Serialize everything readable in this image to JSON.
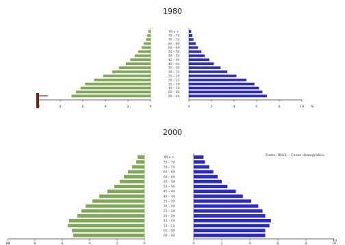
{
  "colors": {
    "male": "#7fa857",
    "female": "#2a2ad0",
    "axis": "#333333",
    "accent_bar": "#7a1e12"
  },
  "chart_data": [
    {
      "type": "bar",
      "title": "1980",
      "xlabel": "",
      "ylabel": "",
      "categories": [
        "00 – 04",
        "05 – 09",
        "10 – 14",
        "15 – 19",
        "20 – 24",
        "25 – 29",
        "30 – 34",
        "35 – 39",
        "40 – 44",
        "45 – 49",
        "50 – 54",
        "55 – 59",
        "60 – 64",
        "65 – 69",
        "70 – 74",
        "75 – 79",
        "80 e +"
      ],
      "series": [
        {
          "side": "left",
          "values": [
            7.0,
            6.6,
            6.2,
            5.8,
            5.0,
            4.2,
            3.4,
            2.8,
            2.2,
            1.8,
            1.4,
            1.1,
            0.8,
            0.6,
            0.4,
            0.3,
            0.2
          ]
        },
        {
          "side": "right",
          "values": [
            6.9,
            6.5,
            6.2,
            5.8,
            5.1,
            4.2,
            3.4,
            2.8,
            2.2,
            1.8,
            1.4,
            1.1,
            0.8,
            0.6,
            0.4,
            0.3,
            0.2
          ]
        }
      ],
      "xlim": [
        0,
        10
      ],
      "x_ticks": [
        "10",
        "8",
        "6",
        "4",
        "2",
        "0"
      ],
      "x_ticks_right": [
        "0",
        "2",
        "4",
        "6",
        "8",
        "10"
      ],
      "unit": "%",
      "axis_edge_labels": [
        "",
        ""
      ],
      "source": ""
    },
    {
      "type": "bar",
      "title": "2000",
      "xlabel": "",
      "ylabel": "",
      "categories": [
        "00 – 04",
        "05 – 09",
        "10 – 14",
        "15 – 19",
        "20 – 24",
        "25 – 29",
        "30 – 34",
        "35 – 39",
        "40 – 44",
        "45 – 49",
        "50 – 54",
        "55 – 59",
        "60 – 64",
        "65 – 69",
        "70 – 74",
        "75 – 79",
        "80 e +"
      ],
      "series": [
        {
          "side": "left",
          "values": [
            5.2,
            5.3,
            5.6,
            5.5,
            4.9,
            4.6,
            4.3,
            3.8,
            3.3,
            2.7,
            2.2,
            1.8,
            1.5,
            1.2,
            0.9,
            0.6,
            0.5
          ]
        },
        {
          "side": "right",
          "values": [
            5.1,
            5.1,
            5.4,
            5.5,
            5.1,
            4.9,
            4.6,
            4.1,
            3.5,
            3.0,
            2.4,
            2.0,
            1.7,
            1.4,
            1.1,
            0.8,
            0.7
          ]
        }
      ],
      "xlim": [
        0,
        10
      ],
      "x_ticks": [
        "10",
        "8",
        "6",
        "4",
        "2",
        "0"
      ],
      "x_ticks_right": [
        "0",
        "2",
        "4",
        "6",
        "8",
        "10"
      ],
      "unit": "",
      "axis_edge_labels": [
        "A",
        "10"
      ],
      "source": "Fonte: IBGE – Censo demográfico."
    }
  ]
}
